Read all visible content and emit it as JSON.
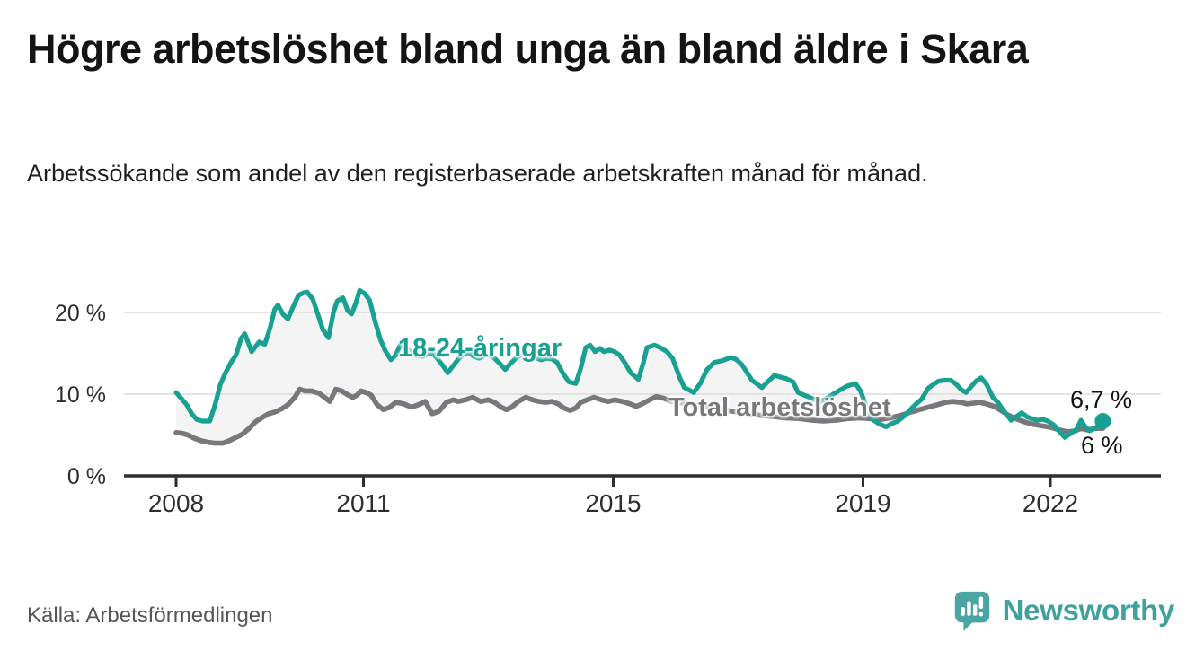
{
  "header": {
    "title": "Högre arbetslöshet bland unga än bland äldre i Skara",
    "subtitle": "Arbetssökande som andel av den registerbaserade arbetskraften månad för månad."
  },
  "footer": {
    "source": "Källa: Arbetsförmedlingen",
    "brand": "Newsworthy",
    "brand_icon": "newsworthy-speech-bubble-barchart-icon"
  },
  "colors": {
    "young_line": "#18a092",
    "total_line": "#77777c",
    "band_fill": "#f4f4f4",
    "grid": "#dcdcdc",
    "axis": "#2e2e32",
    "tick_text": "#2e2e32",
    "title_text": "#141414",
    "source_text": "#55555d",
    "brand_teal": "#3fa09d",
    "logo_bubble": "#4aa5a2"
  },
  "chart_data": {
    "type": "line",
    "title": "Högre arbetslöshet bland unga än bland äldre i Skara",
    "subtitle": "Arbetssökande som andel av den registerbaserade arbetskraften månad för månad.",
    "unit": "%",
    "x_axis": {
      "tick_years": [
        2008,
        2011,
        2015,
        2019,
        2022
      ],
      "range": [
        2007.9,
        2023.7
      ]
    },
    "y_axis": {
      "tick_values": [
        0,
        10,
        20
      ],
      "tick_labels": [
        "0 %",
        "10 %",
        "20 %"
      ],
      "range": [
        0,
        24.5
      ],
      "grid": true
    },
    "legend_position": "inline-labels",
    "annotations": {
      "young_label": "18-24-åringar",
      "total_label": "Total arbetslöshet",
      "young_end_value": "6,7 %",
      "total_end_value": "6 %"
    },
    "series": [
      {
        "name": "18-24-åringar",
        "color": "#18a092",
        "end_dot": true,
        "points": [
          [
            2008.0,
            10.2
          ],
          [
            2008.08,
            9.5
          ],
          [
            2008.17,
            8.7
          ],
          [
            2008.25,
            7.6
          ],
          [
            2008.33,
            6.9
          ],
          [
            2008.42,
            6.7
          ],
          [
            2008.54,
            6.7
          ],
          [
            2008.62,
            8.6
          ],
          [
            2008.71,
            11.2
          ],
          [
            2008.79,
            12.6
          ],
          [
            2008.88,
            13.9
          ],
          [
            2008.96,
            14.8
          ],
          [
            2009.04,
            16.8
          ],
          [
            2009.1,
            17.4
          ],
          [
            2009.21,
            15.2
          ],
          [
            2009.33,
            16.4
          ],
          [
            2009.42,
            16.1
          ],
          [
            2009.5,
            18.0
          ],
          [
            2009.58,
            20.4
          ],
          [
            2009.63,
            20.9
          ],
          [
            2009.71,
            19.8
          ],
          [
            2009.79,
            19.2
          ],
          [
            2009.88,
            20.8
          ],
          [
            2009.96,
            22.1
          ],
          [
            2010.04,
            22.4
          ],
          [
            2010.1,
            22.5
          ],
          [
            2010.19,
            21.6
          ],
          [
            2010.29,
            19.3
          ],
          [
            2010.35,
            17.9
          ],
          [
            2010.44,
            16.9
          ],
          [
            2010.52,
            20.0
          ],
          [
            2010.58,
            21.4
          ],
          [
            2010.67,
            21.8
          ],
          [
            2010.75,
            20.2
          ],
          [
            2010.81,
            19.8
          ],
          [
            2010.88,
            21.2
          ],
          [
            2010.94,
            22.7
          ],
          [
            2011.02,
            22.3
          ],
          [
            2011.1,
            21.5
          ],
          [
            2011.19,
            18.8
          ],
          [
            2011.27,
            16.7
          ],
          [
            2011.35,
            15.3
          ],
          [
            2011.44,
            14.2
          ],
          [
            2011.52,
            14.8
          ],
          [
            2011.6,
            16.2
          ],
          [
            2011.69,
            15.6
          ],
          [
            2011.77,
            15.1
          ],
          [
            2011.85,
            14.7
          ],
          [
            2011.94,
            14.6
          ],
          [
            2012.02,
            14.9
          ],
          [
            2012.1,
            15.1
          ],
          [
            2012.19,
            14.3
          ],
          [
            2012.27,
            13.5
          ],
          [
            2012.35,
            12.6
          ],
          [
            2012.44,
            13.5
          ],
          [
            2012.52,
            14.3
          ],
          [
            2012.6,
            14.9
          ],
          [
            2012.69,
            15.1
          ],
          [
            2012.77,
            14.6
          ],
          [
            2012.85,
            14.4
          ],
          [
            2012.94,
            14.7
          ],
          [
            2013.02,
            14.8
          ],
          [
            2013.1,
            14.4
          ],
          [
            2013.19,
            13.7
          ],
          [
            2013.27,
            13.0
          ],
          [
            2013.35,
            13.7
          ],
          [
            2013.44,
            14.4
          ],
          [
            2013.52,
            14.8
          ],
          [
            2013.6,
            15.0
          ],
          [
            2013.69,
            14.7
          ],
          [
            2013.77,
            14.4
          ],
          [
            2013.85,
            14.2
          ],
          [
            2013.94,
            14.4
          ],
          [
            2014.02,
            14.3
          ],
          [
            2014.1,
            13.9
          ],
          [
            2014.19,
            12.6
          ],
          [
            2014.29,
            11.5
          ],
          [
            2014.4,
            11.3
          ],
          [
            2014.48,
            13.2
          ],
          [
            2014.56,
            15.7
          ],
          [
            2014.63,
            16.0
          ],
          [
            2014.71,
            15.2
          ],
          [
            2014.79,
            15.6
          ],
          [
            2014.85,
            15.2
          ],
          [
            2014.94,
            15.4
          ],
          [
            2015.02,
            15.2
          ],
          [
            2015.1,
            14.8
          ],
          [
            2015.19,
            13.8
          ],
          [
            2015.28,
            12.6
          ],
          [
            2015.4,
            11.8
          ],
          [
            2015.48,
            13.8
          ],
          [
            2015.54,
            15.7
          ],
          [
            2015.66,
            16.0
          ],
          [
            2015.75,
            15.7
          ],
          [
            2015.86,
            15.2
          ],
          [
            2015.95,
            14.4
          ],
          [
            2016.07,
            11.9
          ],
          [
            2016.14,
            10.8
          ],
          [
            2016.29,
            10.2
          ],
          [
            2016.4,
            11.4
          ],
          [
            2016.5,
            13.0
          ],
          [
            2016.62,
            13.9
          ],
          [
            2016.75,
            14.1
          ],
          [
            2016.88,
            14.5
          ],
          [
            2016.96,
            14.3
          ],
          [
            2017.05,
            13.7
          ],
          [
            2017.13,
            12.8
          ],
          [
            2017.22,
            11.7
          ],
          [
            2017.38,
            10.8
          ],
          [
            2017.46,
            11.4
          ],
          [
            2017.58,
            12.3
          ],
          [
            2017.67,
            12.1
          ],
          [
            2017.77,
            11.9
          ],
          [
            2017.88,
            11.5
          ],
          [
            2017.96,
            10.2
          ],
          [
            2018.08,
            9.8
          ],
          [
            2018.21,
            9.4
          ],
          [
            2018.33,
            9.1
          ],
          [
            2018.46,
            9.7
          ],
          [
            2018.63,
            10.5
          ],
          [
            2018.75,
            11.0
          ],
          [
            2018.88,
            11.3
          ],
          [
            2018.96,
            10.4
          ],
          [
            2019.08,
            7.9
          ],
          [
            2019.17,
            6.8
          ],
          [
            2019.27,
            6.3
          ],
          [
            2019.37,
            6.0
          ],
          [
            2019.46,
            6.4
          ],
          [
            2019.56,
            6.7
          ],
          [
            2019.67,
            7.4
          ],
          [
            2019.77,
            8.2
          ],
          [
            2019.85,
            8.8
          ],
          [
            2019.94,
            9.4
          ],
          [
            2020.04,
            10.7
          ],
          [
            2020.13,
            11.2
          ],
          [
            2020.21,
            11.6
          ],
          [
            2020.31,
            11.7
          ],
          [
            2020.4,
            11.7
          ],
          [
            2020.48,
            11.3
          ],
          [
            2020.58,
            10.5
          ],
          [
            2020.65,
            10.2
          ],
          [
            2020.73,
            10.9
          ],
          [
            2020.81,
            11.6
          ],
          [
            2020.89,
            12.0
          ],
          [
            2020.98,
            11.2
          ],
          [
            2021.08,
            9.6
          ],
          [
            2021.15,
            9.1
          ],
          [
            2021.25,
            8.0
          ],
          [
            2021.37,
            6.8
          ],
          [
            2021.46,
            7.3
          ],
          [
            2021.54,
            7.7
          ],
          [
            2021.63,
            7.2
          ],
          [
            2021.71,
            7.0
          ],
          [
            2021.79,
            6.8
          ],
          [
            2021.88,
            6.9
          ],
          [
            2021.96,
            6.7
          ],
          [
            2022.06,
            6.2
          ],
          [
            2022.15,
            5.4
          ],
          [
            2022.23,
            4.7
          ],
          [
            2022.33,
            5.2
          ],
          [
            2022.42,
            5.7
          ],
          [
            2022.49,
            6.8
          ],
          [
            2022.56,
            6.0
          ],
          [
            2022.63,
            5.5
          ],
          [
            2022.73,
            5.9
          ],
          [
            2022.84,
            6.7
          ]
        ]
      },
      {
        "name": "Total arbetslöshet",
        "color": "#77777c",
        "end_dot": false,
        "points": [
          [
            2008.0,
            5.3
          ],
          [
            2008.1,
            5.2
          ],
          [
            2008.19,
            5.0
          ],
          [
            2008.29,
            4.6
          ],
          [
            2008.4,
            4.3
          ],
          [
            2008.52,
            4.1
          ],
          [
            2008.63,
            4.0
          ],
          [
            2008.75,
            4.0
          ],
          [
            2008.85,
            4.3
          ],
          [
            2008.96,
            4.7
          ],
          [
            2009.06,
            5.1
          ],
          [
            2009.17,
            5.8
          ],
          [
            2009.27,
            6.6
          ],
          [
            2009.37,
            7.1
          ],
          [
            2009.48,
            7.6
          ],
          [
            2009.58,
            7.8
          ],
          [
            2009.69,
            8.2
          ],
          [
            2009.79,
            8.7
          ],
          [
            2009.9,
            9.6
          ],
          [
            2009.98,
            10.6
          ],
          [
            2010.06,
            10.4
          ],
          [
            2010.17,
            10.4
          ],
          [
            2010.29,
            10.1
          ],
          [
            2010.38,
            9.6
          ],
          [
            2010.46,
            9.1
          ],
          [
            2010.56,
            10.6
          ],
          [
            2010.65,
            10.4
          ],
          [
            2010.75,
            9.9
          ],
          [
            2010.83,
            9.6
          ],
          [
            2010.9,
            9.9
          ],
          [
            2010.96,
            10.4
          ],
          [
            2011.04,
            10.2
          ],
          [
            2011.12,
            9.9
          ],
          [
            2011.22,
            8.7
          ],
          [
            2011.32,
            8.1
          ],
          [
            2011.42,
            8.4
          ],
          [
            2011.52,
            9.0
          ],
          [
            2011.65,
            8.8
          ],
          [
            2011.77,
            8.4
          ],
          [
            2011.88,
            8.7
          ],
          [
            2011.99,
            9.1
          ],
          [
            2012.1,
            7.6
          ],
          [
            2012.21,
            7.9
          ],
          [
            2012.33,
            9.0
          ],
          [
            2012.44,
            9.3
          ],
          [
            2012.52,
            9.1
          ],
          [
            2012.63,
            9.3
          ],
          [
            2012.75,
            9.6
          ],
          [
            2012.88,
            9.1
          ],
          [
            2013.0,
            9.3
          ],
          [
            2013.1,
            9.0
          ],
          [
            2013.21,
            8.4
          ],
          [
            2013.29,
            8.1
          ],
          [
            2013.37,
            8.4
          ],
          [
            2013.48,
            9.1
          ],
          [
            2013.6,
            9.6
          ],
          [
            2013.71,
            9.3
          ],
          [
            2013.81,
            9.1
          ],
          [
            2013.92,
            9.0
          ],
          [
            2014.02,
            9.1
          ],
          [
            2014.12,
            8.8
          ],
          [
            2014.21,
            8.3
          ],
          [
            2014.31,
            8.0
          ],
          [
            2014.4,
            8.3
          ],
          [
            2014.48,
            9.0
          ],
          [
            2014.58,
            9.3
          ],
          [
            2014.69,
            9.6
          ],
          [
            2014.81,
            9.3
          ],
          [
            2014.92,
            9.1
          ],
          [
            2015.02,
            9.3
          ],
          [
            2015.15,
            9.1
          ],
          [
            2015.27,
            8.8
          ],
          [
            2015.37,
            8.5
          ],
          [
            2015.46,
            8.8
          ],
          [
            2015.58,
            9.3
          ],
          [
            2015.69,
            9.7
          ],
          [
            2015.81,
            9.5
          ],
          [
            2015.94,
            9.1
          ],
          [
            2016.06,
            9.0
          ],
          [
            2016.25,
            8.7
          ],
          [
            2016.5,
            8.4
          ],
          [
            2016.75,
            8.1
          ],
          [
            2017.0,
            7.8
          ],
          [
            2017.25,
            7.5
          ],
          [
            2017.5,
            7.3
          ],
          [
            2017.75,
            7.1
          ],
          [
            2018.0,
            7.0
          ],
          [
            2018.19,
            6.8
          ],
          [
            2018.37,
            6.7
          ],
          [
            2018.56,
            6.8
          ],
          [
            2018.75,
            7.0
          ],
          [
            2018.94,
            7.1
          ],
          [
            2019.1,
            7.0
          ],
          [
            2019.27,
            6.9
          ],
          [
            2019.44,
            7.1
          ],
          [
            2019.6,
            7.4
          ],
          [
            2019.77,
            7.8
          ],
          [
            2019.9,
            8.1
          ],
          [
            2020.04,
            8.4
          ],
          [
            2020.19,
            8.7
          ],
          [
            2020.33,
            9.0
          ],
          [
            2020.44,
            9.1
          ],
          [
            2020.56,
            9.0
          ],
          [
            2020.67,
            8.8
          ],
          [
            2020.77,
            8.9
          ],
          [
            2020.87,
            9.0
          ],
          [
            2020.98,
            8.8
          ],
          [
            2021.1,
            8.5
          ],
          [
            2021.19,
            8.1
          ],
          [
            2021.31,
            7.5
          ],
          [
            2021.44,
            7.0
          ],
          [
            2021.58,
            6.6
          ],
          [
            2021.73,
            6.3
          ],
          [
            2021.88,
            6.1
          ],
          [
            2022.02,
            5.9
          ],
          [
            2022.15,
            5.6
          ],
          [
            2022.27,
            5.4
          ],
          [
            2022.4,
            5.5
          ],
          [
            2022.49,
            5.8
          ],
          [
            2022.6,
            5.6
          ],
          [
            2022.71,
            5.8
          ],
          [
            2022.84,
            5.8
          ]
        ]
      }
    ]
  }
}
